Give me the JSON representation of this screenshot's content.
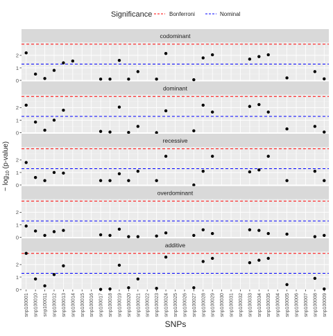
{
  "chart_data": {
    "type": "scatter",
    "xlabel": "SNPs",
    "ylabel_prefix": "− log",
    "ylabel_sub": "10",
    "ylabel_suffix": " (p-value)",
    "legend": {
      "title": "Significance",
      "placement": "top",
      "items": [
        {
          "label": "Bonferroni",
          "color": "#ff0000",
          "line": "dashed"
        },
        {
          "label": "Nominal",
          "color": "#0000ff",
          "line": "dashed"
        }
      ]
    },
    "thresholds": {
      "Bonferroni": 2.9,
      "Nominal": 1.3
    },
    "ylim": [
      0,
      3.05
    ],
    "yticks": [
      0,
      1,
      2
    ],
    "grid": true,
    "categories": [
      "snp100001",
      "snp100010",
      "snp100011",
      "snp100012",
      "snp100013",
      "snp100014",
      "snp100015",
      "snp100016",
      "snp100017",
      "snp100018",
      "snp100019",
      "snp100020",
      "snp100021",
      "snp100022",
      "snp100023",
      "snp100024",
      "snp100025",
      "snp100026",
      "snp100027",
      "snp100028",
      "snp100029",
      "snp100030",
      "snp100031",
      "snp100032",
      "snp100033",
      "snp100034",
      "snp100035",
      "snp100004",
      "snp100005",
      "snp100006",
      "snp100007",
      "snp100008",
      "snp100009"
    ],
    "panels": [
      {
        "name": "codominant",
        "values": [
          2.2,
          0.5,
          0.15,
          0.8,
          1.4,
          1.55,
          null,
          null,
          0.1,
          0.1,
          1.6,
          0.1,
          0.7,
          null,
          0.1,
          2.15,
          null,
          null,
          0.05,
          1.8,
          2.05,
          null,
          null,
          null,
          1.7,
          1.9,
          2.05,
          null,
          0.2,
          null,
          null,
          0.7,
          0.12
        ]
      },
      {
        "name": "dominant",
        "values": [
          2.2,
          0.85,
          0.2,
          1.0,
          1.8,
          null,
          null,
          null,
          0.1,
          0.05,
          2.05,
          0.02,
          0.5,
          null,
          0.0,
          1.75,
          null,
          null,
          0.15,
          2.2,
          1.65,
          null,
          null,
          null,
          2.1,
          2.25,
          1.65,
          null,
          0.3,
          null,
          null,
          0.5,
          0.05
        ]
      },
      {
        "name": "recessive",
        "values": [
          1.8,
          0.6,
          0.35,
          1.0,
          0.95,
          null,
          null,
          null,
          0.35,
          0.35,
          0.9,
          0.35,
          1.1,
          null,
          0.35,
          2.3,
          null,
          null,
          0.0,
          1.1,
          2.3,
          null,
          null,
          null,
          1.05,
          1.2,
          2.3,
          null,
          0.35,
          null,
          null,
          1.1,
          0.35
        ]
      },
      {
        "name": "overdominant",
        "values": [
          0.9,
          0.5,
          0.15,
          0.45,
          0.55,
          null,
          null,
          null,
          0.2,
          0.15,
          0.65,
          0.05,
          0.05,
          null,
          0.1,
          0.35,
          null,
          null,
          0.15,
          0.6,
          0.3,
          null,
          null,
          null,
          0.6,
          0.55,
          0.3,
          null,
          0.25,
          null,
          null,
          0.05,
          0.15
        ]
      },
      {
        "name": "additive",
        "values": [
          2.9,
          0.85,
          0.3,
          1.2,
          1.9,
          null,
          null,
          null,
          0.02,
          0.05,
          1.95,
          0.15,
          0.85,
          null,
          0.1,
          2.6,
          null,
          null,
          0.15,
          2.25,
          2.5,
          null,
          null,
          null,
          2.15,
          2.35,
          2.5,
          null,
          0.4,
          null,
          null,
          0.9,
          0.05
        ]
      }
    ]
  }
}
